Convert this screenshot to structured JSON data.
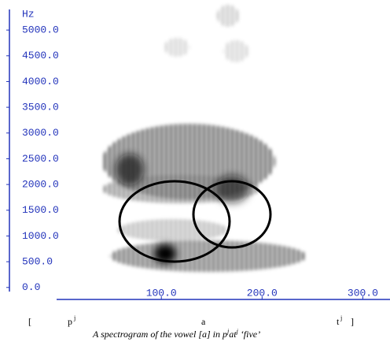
{
  "chart_data": {
    "type": "spectrogram",
    "y_label": "Hz",
    "ylim": [
      -80,
      5400
    ],
    "yticks": [
      {
        "value": 0,
        "label": "0.0"
      },
      {
        "value": 500,
        "label": "500.0"
      },
      {
        "value": 1000,
        "label": "1000.0"
      },
      {
        "value": 1500,
        "label": "1500.0"
      },
      {
        "value": 2000,
        "label": "2000.0"
      },
      {
        "value": 2500,
        "label": "2500.0"
      },
      {
        "value": 3000,
        "label": "3000.0"
      },
      {
        "value": 3500,
        "label": "3500.0"
      },
      {
        "value": 4000,
        "label": "4000.0"
      },
      {
        "value": 4500,
        "label": "4500.0"
      },
      {
        "value": 5000,
        "label": "5000.0"
      }
    ],
    "xlim": [
      -4,
      327
    ],
    "xticks": [
      {
        "value": 100,
        "label": "100.0"
      },
      {
        "value": 200,
        "label": "200.0"
      },
      {
        "value": 300,
        "label": "300.0"
      }
    ],
    "transcription": [
      "[",
      "p",
      "j",
      "a",
      "t",
      "j",
      "]"
    ],
    "caption": [
      "A spectrogram of the vowel [a] in p",
      "j",
      "at",
      "j",
      " ‘five’"
    ]
  }
}
